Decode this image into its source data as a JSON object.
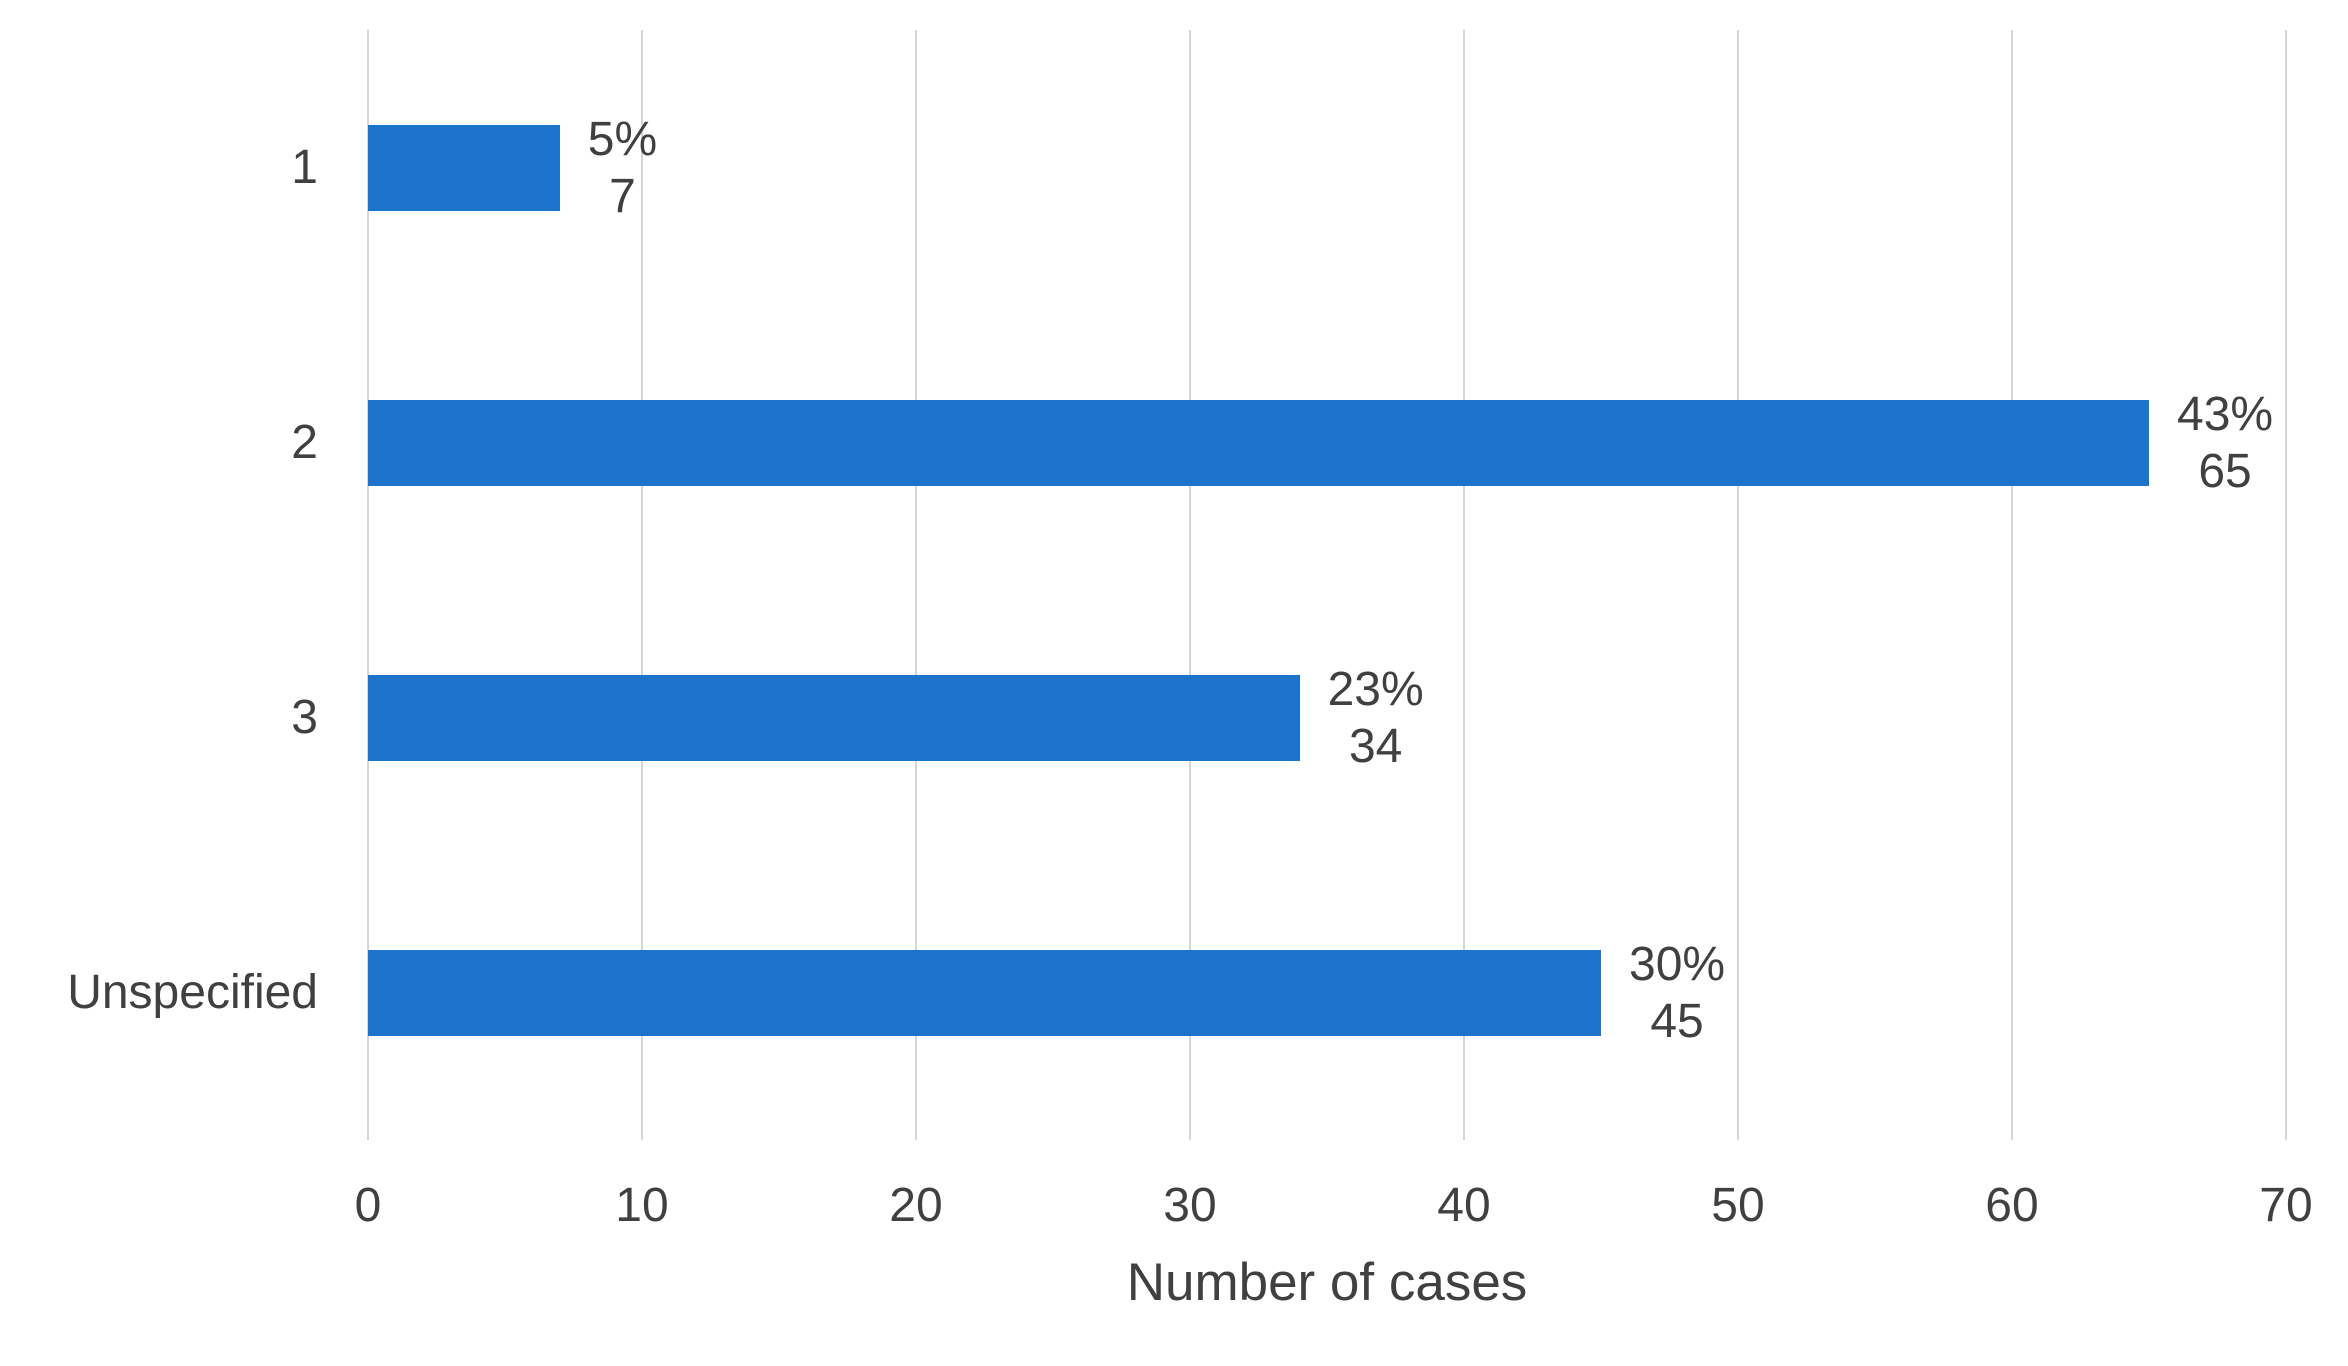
{
  "chart_data": {
    "type": "bar",
    "orientation": "horizontal",
    "title": "",
    "categories": [
      "1",
      "2",
      "3",
      "Unspecified"
    ],
    "values": [
      7,
      65,
      34,
      45
    ],
    "series": [
      {
        "name": "Number of cases",
        "values": [
          7,
          65,
          34,
          45
        ],
        "percent_labels": [
          "5%",
          "43%",
          "23%",
          "30%"
        ],
        "count_labels": [
          "7",
          "65",
          "34",
          "45"
        ]
      }
    ],
    "xlabel": "Number of cases",
    "ylabel": "",
    "x_ticks": [
      0,
      10,
      20,
      30,
      40,
      50,
      60,
      70
    ],
    "xlim": [
      0,
      70
    ],
    "grid": true,
    "legend": "none",
    "colors": {
      "bar": "#1d72c9",
      "gridline": "#d6d6d6",
      "text": "#404040",
      "background": "#ffffff"
    }
  }
}
